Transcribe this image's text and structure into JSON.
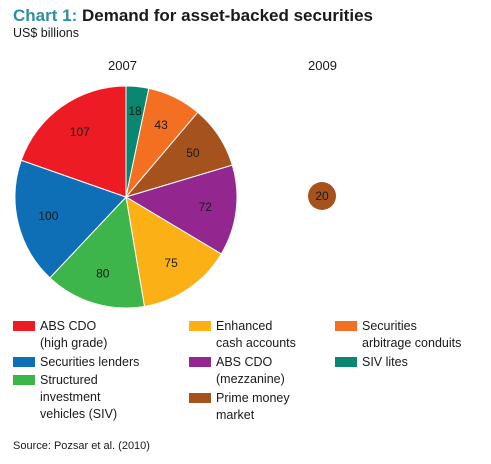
{
  "title": {
    "number": "Chart 1:",
    "text": "Demand for asset-backed securities"
  },
  "subtitle": "US$ billions",
  "chart_data": [
    {
      "type": "pie",
      "title": "2007",
      "slices": [
        {
          "label": "SIV lites",
          "value": 18,
          "color": "#0a8770"
        },
        {
          "label": "Securities arbitrage conduits",
          "value": 43,
          "color": "#f36f21"
        },
        {
          "label": "Prime money market",
          "value": 50,
          "color": "#a6521d"
        },
        {
          "label": "ABS CDO (mezzanine)",
          "value": 72,
          "color": "#93278f"
        },
        {
          "label": "Enhanced cash accounts",
          "value": 75,
          "color": "#fbb016"
        },
        {
          "label": "Structured investment vehicles (SIV)",
          "value": 80,
          "color": "#3db54a"
        },
        {
          "label": "Securities lenders",
          "value": 100,
          "color": "#0f6fb6"
        },
        {
          "label": "ABS CDO (high grade)",
          "value": 107,
          "color": "#ed1c24"
        }
      ]
    },
    {
      "type": "pie",
      "title": "2009",
      "slices": [
        {
          "label": "Prime money market",
          "value": 20,
          "color": "#a6521d"
        }
      ]
    }
  ],
  "legend": [
    {
      "text": "ABS CDO\n(high grade)",
      "color": "#ed1c24"
    },
    {
      "text": "Enhanced\ncash accounts",
      "color": "#fbb016"
    },
    {
      "text": "Securities\narbitrage conduits",
      "color": "#f36f21"
    },
    {
      "text": "Securities lenders",
      "color": "#0f6fb6"
    },
    {
      "text": "ABS CDO\n(mezzanine)",
      "color": "#93278f"
    },
    {
      "text": "SIV lites",
      "color": "#0a8770"
    },
    {
      "text": "Structured\ninvestment\nvehicles (SIV)",
      "color": "#3db54a"
    },
    {
      "text": "Prime money\nmarket",
      "color": "#a6521d"
    }
  ],
  "source": "Source: Pozsar et al. (2010)"
}
